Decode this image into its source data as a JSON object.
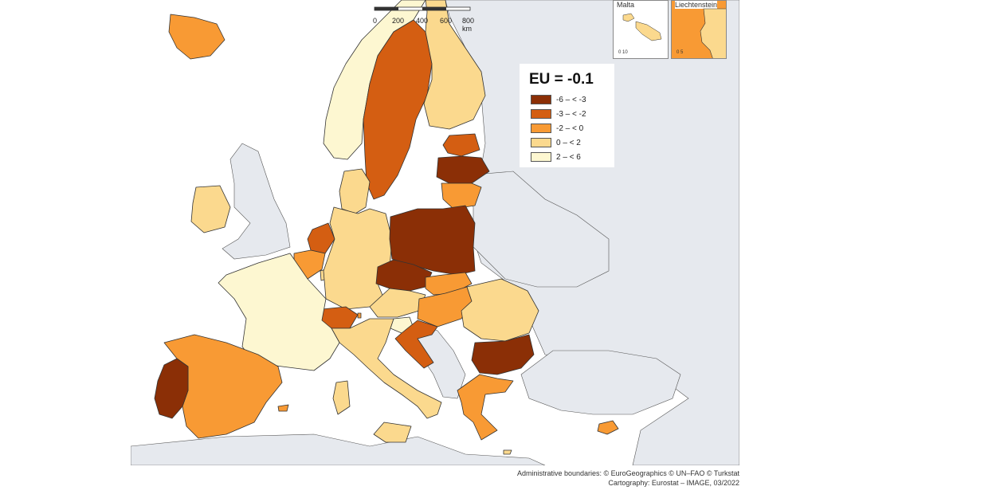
{
  "legend": {
    "title": "EU = -0.1",
    "classes": [
      {
        "label": "-6 – < -3",
        "color": "#8b2f06"
      },
      {
        "label": "-3 – < -2",
        "color": "#d45e12"
      },
      {
        "label": "-2 – < 0",
        "color": "#f89a34"
      },
      {
        "label": "0 – < 2",
        "color": "#fbd98e"
      },
      {
        "label": "2 – < 6",
        "color": "#fdf7d1"
      }
    ]
  },
  "scale_bar": {
    "ticks": [
      "0",
      "200",
      "400",
      "600",
      "800 km"
    ]
  },
  "insets": [
    {
      "title": "Malta",
      "scale": "0 10"
    },
    {
      "title": "Liechtenstein",
      "scale": "0 5"
    }
  ],
  "credits": {
    "line1": "Administrative boundaries: © EuroGeographics © UN–FAO © Turkstat",
    "line2": "Cartography: Eurostat – IMAGE, 03/2022"
  },
  "colors": {
    "sea": "#ffffff",
    "non_eu_land": "#e6e9ee",
    "border": "#333333"
  },
  "regions": [
    {
      "name": "Iceland",
      "class": 2
    },
    {
      "name": "Norway",
      "class": 4
    },
    {
      "name": "Sweden",
      "class": 1
    },
    {
      "name": "Finland",
      "class": 3
    },
    {
      "name": "Estonia",
      "class": 1
    },
    {
      "name": "Latvia",
      "class": 0
    },
    {
      "name": "Lithuania",
      "class": 2
    },
    {
      "name": "Denmark",
      "class": 3
    },
    {
      "name": "Ireland",
      "class": 3
    },
    {
      "name": "Netherlands",
      "class": 1
    },
    {
      "name": "Belgium",
      "class": 2
    },
    {
      "name": "Luxembourg",
      "class": 3
    },
    {
      "name": "Germany",
      "class": 3
    },
    {
      "name": "Poland",
      "class": 0
    },
    {
      "name": "Czechia",
      "class": 0
    },
    {
      "name": "Slovakia",
      "class": 2
    },
    {
      "name": "Austria",
      "class": 3
    },
    {
      "name": "Switzerland",
      "class": 1
    },
    {
      "name": "Liechtenstein",
      "class": 2
    },
    {
      "name": "Hungary",
      "class": 2
    },
    {
      "name": "Slovenia",
      "class": 4
    },
    {
      "name": "Croatia",
      "class": 1
    },
    {
      "name": "Romania",
      "class": 3
    },
    {
      "name": "Bulgaria",
      "class": 0
    },
    {
      "name": "Greece",
      "class": 2
    },
    {
      "name": "Cyprus",
      "class": 2
    },
    {
      "name": "Malta",
      "class": 3
    },
    {
      "name": "Italy",
      "class": 3
    },
    {
      "name": "France",
      "class": 4
    },
    {
      "name": "Spain",
      "class": 2
    },
    {
      "name": "Portugal",
      "class": 0
    }
  ]
}
